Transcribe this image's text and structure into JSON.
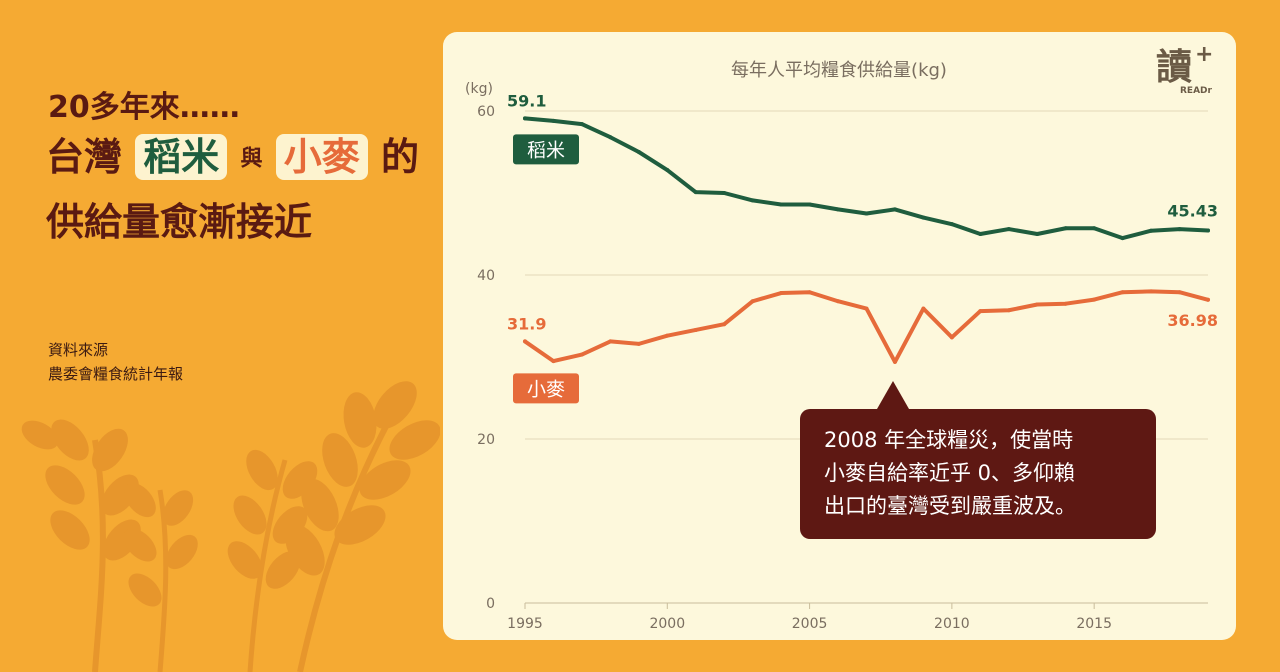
{
  "intro": {
    "subtitle": "20多年來……",
    "headline_part1": "台灣",
    "rice_word": "稻米",
    "conjunction": "與",
    "wheat_word": "小麥",
    "headline_part2": "的",
    "headline_line2": "供給量愈漸接近"
  },
  "source": {
    "label": "資料來源",
    "name": "農委會糧食統計年報"
  },
  "logo": {
    "main": "讀",
    "plus": "+",
    "sub": "READr"
  },
  "callout": {
    "line1": "2008 年全球糧災，使當時",
    "line2": "小麥自給率近乎 0、多仰賴",
    "line3": "出口的臺灣受到嚴重波及。"
  },
  "colors": {
    "background": "#f5aa33",
    "card": "#fdf8dc",
    "rice": "#1f5d3e",
    "wheat": "#e66b3a",
    "title": "#5a1a12",
    "callout": "#5e1813"
  },
  "chart_data": {
    "type": "line",
    "title": "每年人平均糧食供給量(kg)",
    "ylabel": "(kg)",
    "ylim": [
      0,
      60
    ],
    "yticks": [
      0,
      20,
      40,
      60
    ],
    "xticks": [
      1995,
      2000,
      2005,
      2010,
      2015
    ],
    "xlim": [
      1995,
      2019
    ],
    "grid": true,
    "x": [
      1995,
      1996,
      1997,
      1998,
      1999,
      2000,
      2001,
      2002,
      2003,
      2004,
      2005,
      2006,
      2007,
      2008,
      2009,
      2010,
      2011,
      2012,
      2013,
      2014,
      2015,
      2016,
      2017,
      2018,
      2019
    ],
    "series": [
      {
        "name": "稻米",
        "color": "#1f5d3e",
        "values": [
          59.1,
          58.8,
          58.4,
          56.8,
          55.0,
          52.8,
          50.1,
          50.0,
          49.1,
          48.6,
          48.6,
          48.0,
          47.5,
          48.0,
          47.0,
          46.2,
          45.0,
          45.6,
          45.0,
          45.7,
          45.7,
          44.5,
          45.4,
          45.6,
          45.43
        ],
        "start_label": "59.1",
        "end_label": "45.43"
      },
      {
        "name": "小麥",
        "color": "#e66b3a",
        "values": [
          31.9,
          29.5,
          30.3,
          31.9,
          31.6,
          32.6,
          33.3,
          34.0,
          36.8,
          37.8,
          37.9,
          36.8,
          35.9,
          29.4,
          35.9,
          32.4,
          35.6,
          35.7,
          36.4,
          36.5,
          37.0,
          37.9,
          38.0,
          37.9,
          36.98
        ],
        "start_label": "31.9",
        "end_label": "36.98"
      }
    ]
  }
}
